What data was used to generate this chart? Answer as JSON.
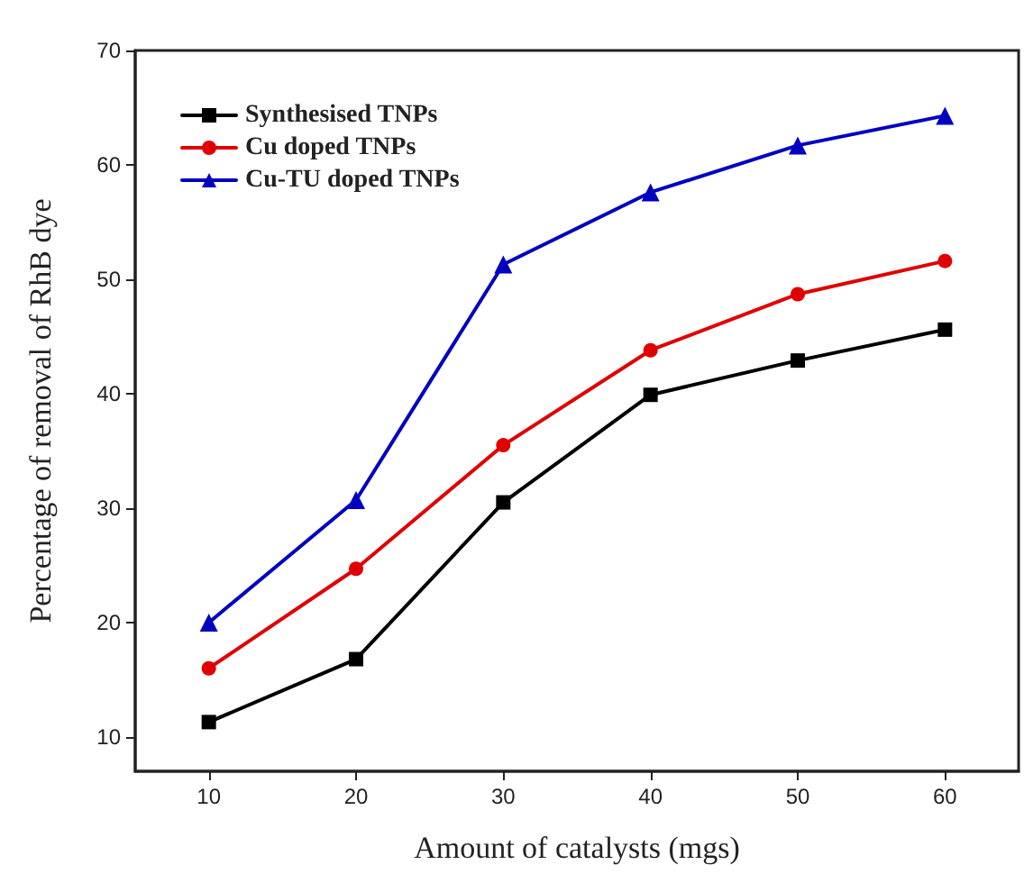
{
  "chart_data": {
    "type": "line",
    "xlabel": "Amount of catalysts (mgs)",
    "ylabel": "Percentage of removal of RhB dye",
    "x": [
      10,
      20,
      30,
      40,
      50,
      60
    ],
    "series": [
      {
        "name": "Synthesised TNPs",
        "color": "#000000",
        "marker": "square",
        "values": [
          11.3,
          16.8,
          30.5,
          39.9,
          42.9,
          45.6
        ]
      },
      {
        "name": "Cu doped TNPs",
        "color": "#e00000",
        "marker": "circle",
        "values": [
          16,
          24.7,
          35.5,
          43.8,
          48.7,
          51.6
        ]
      },
      {
        "name": "Cu-TU doped TNPs",
        "color": "#0000c0",
        "marker": "triangle",
        "values": [
          20,
          30.7,
          51.3,
          57.6,
          61.7,
          64.3
        ]
      }
    ],
    "xlim": [
      5,
      65
    ],
    "xticks": [
      10,
      20,
      30,
      40,
      50,
      60
    ],
    "ylim": [
      7,
      70
    ],
    "yticks": [
      10,
      20,
      30,
      40,
      50,
      60,
      70
    ],
    "grid": false,
    "legend": "top left",
    "line_style": "solid"
  }
}
